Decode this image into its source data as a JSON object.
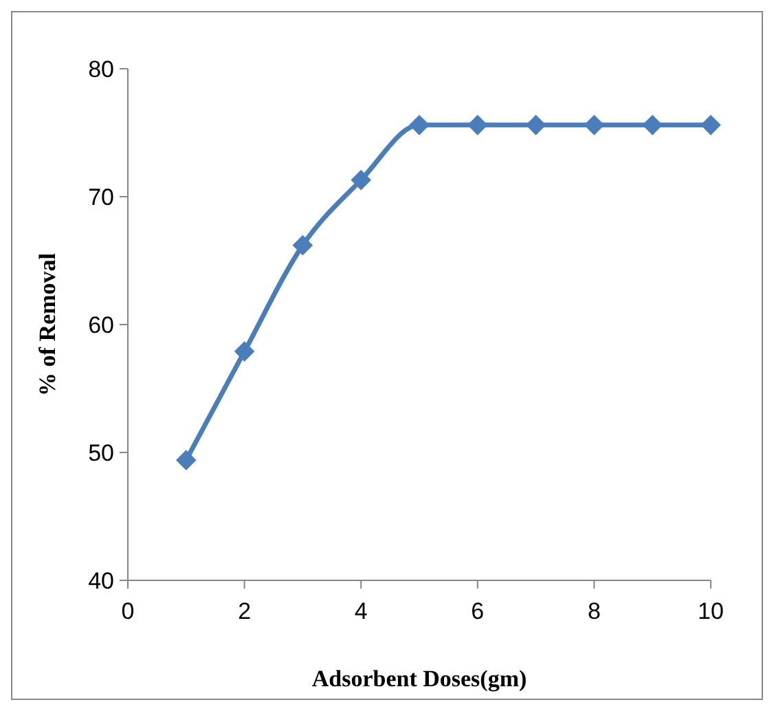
{
  "chart_data": {
    "type": "line",
    "xlabel": "Adsorbent Doses(gm)",
    "ylabel": "% of Removal",
    "x": [
      1,
      2,
      3,
      4,
      5,
      6,
      7,
      8,
      9,
      10
    ],
    "series": [
      {
        "color": "#4a7ebb",
        "values": [
          49.4,
          57.9,
          66.2,
          71.3,
          75.6,
          75.6,
          75.6,
          75.6,
          75.6,
          75.6
        ]
      }
    ],
    "xlim": [
      0,
      10
    ],
    "xticks": [
      0,
      2,
      4,
      6,
      8,
      10
    ],
    "ylim": [
      40,
      80
    ],
    "yticks": [
      40,
      50,
      60,
      70,
      80
    ],
    "grid": false,
    "marker": "diamond",
    "line_style": "solid"
  }
}
